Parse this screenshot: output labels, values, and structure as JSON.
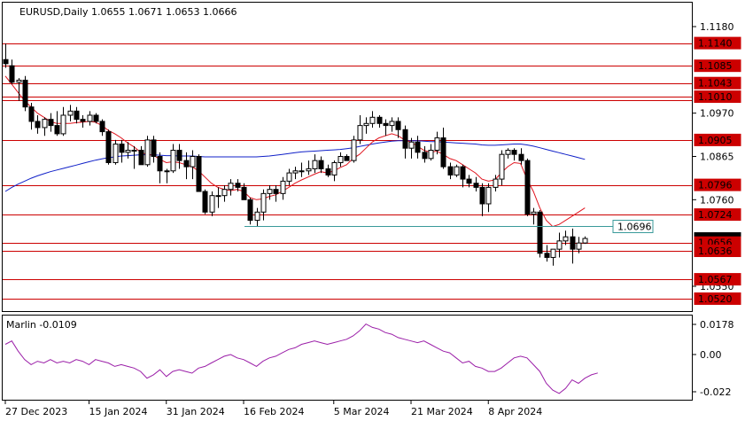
{
  "header": {
    "title": "EURUSD,Daily",
    "ohlc": "1.0655 1.0671 1.0653 1.0666"
  },
  "indicator": {
    "label": "Marlin -0.0109",
    "ticks": [
      "0.0178",
      "0.00",
      "-0.022"
    ]
  },
  "colors": {
    "bull": "#ffffff",
    "bear": "#000000",
    "level": "#cc0000",
    "ma_fast": "#e0141e",
    "ma_slow": "#1020c8",
    "marlin": "#9b1fa8",
    "hline": "#3a9a9a"
  },
  "chart_data": [
    {
      "type": "candlestick",
      "title": "EURUSD,Daily",
      "price_ticks": [
        "1.1180",
        "1.0970",
        "1.0865",
        "1.0760",
        "1.0550"
      ],
      "x_tick_labels": [
        "27 Dec 2023",
        "15 Jan 2024",
        "31 Jan 2024",
        "16 Feb 2024",
        "5 Mar 2024",
        "21 Mar 2024",
        "8 Apr 2024"
      ],
      "horizontal_levels": [
        "1.1140",
        "1.1085",
        "1.1043",
        "1.1010",
        "1.1001",
        "1.0905",
        "1.0796",
        "1.0724",
        "1.0656",
        "1.0636",
        "1.0567",
        "1.0520"
      ],
      "marked_level": "1.0696",
      "current_price": "1.0666",
      "series": [
        {
          "name": "open",
          "values": [
            1.11,
            1.1085,
            1.1045,
            1.105,
            1.0985,
            1.095,
            1.0935,
            1.0955,
            1.094,
            1.092,
            1.0965,
            1.0975,
            1.0955,
            1.095,
            1.0965,
            1.095,
            1.0925,
            1.085,
            1.0895,
            1.0875,
            1.088,
            1.088,
            1.0845,
            1.0905,
            1.0865,
            1.083,
            1.083,
            1.088,
            1.0855,
            1.084,
            1.0865,
            1.078,
            1.073,
            1.077,
            1.077,
            1.0785,
            1.08,
            1.079,
            1.076,
            1.071,
            1.073,
            1.0775,
            1.0785,
            1.0775,
            1.0805,
            1.0825,
            1.083,
            1.083,
            1.0835,
            1.0855,
            1.0835,
            1.082,
            1.085,
            1.0865,
            1.0855,
            1.0905,
            1.094,
            1.0945,
            1.096,
            1.0945,
            1.094,
            1.095,
            1.093,
            1.0885,
            1.09,
            1.0875,
            1.086,
            1.088,
            1.091,
            1.084,
            1.082,
            1.084,
            1.081,
            1.08,
            1.079,
            1.075,
            1.079,
            1.081,
            1.087,
            1.088,
            1.087,
            1.0855,
            1.0725,
            1.073,
            1.063,
            1.062,
            1.064,
            1.066,
            1.067,
            1.064,
            1.0655
          ]
        },
        {
          "name": "high",
          "values": [
            1.1139,
            1.11,
            1.1055,
            1.106,
            1.0995,
            1.0965,
            1.096,
            1.097,
            1.0975,
            1.0985,
            1.099,
            1.0985,
            1.0965,
            1.0975,
            1.097,
            1.0955,
            1.093,
            1.0905,
            1.0905,
            1.09,
            1.089,
            1.089,
            1.0915,
            1.0915,
            1.0875,
            1.0835,
            1.0895,
            1.0895,
            1.0875,
            1.088,
            1.087,
            1.0785,
            1.078,
            1.079,
            1.0795,
            1.081,
            1.081,
            1.08,
            1.0765,
            1.074,
            1.0785,
            1.0795,
            1.0795,
            1.0815,
            1.0835,
            1.084,
            1.085,
            1.0855,
            1.087,
            1.0865,
            1.0845,
            1.0855,
            1.0875,
            1.087,
            1.0915,
            1.0965,
            1.096,
            1.0975,
            1.0965,
            1.0955,
            1.096,
            1.096,
            1.094,
            1.091,
            1.0915,
            1.089,
            1.0895,
            1.0925,
            1.0935,
            1.085,
            1.0845,
            1.0845,
            1.082,
            1.0815,
            1.08,
            1.08,
            1.082,
            1.088,
            1.0885,
            1.0885,
            1.0885,
            1.086,
            1.074,
            1.0735,
            1.065,
            1.064,
            1.068,
            1.0685,
            1.069,
            1.067,
            1.0671
          ]
        },
        {
          "name": "low",
          "values": [
            1.108,
            1.104,
            1.1,
            1.0975,
            1.093,
            1.092,
            1.0915,
            1.0925,
            1.0915,
            1.0915,
            1.095,
            1.0945,
            1.0935,
            1.094,
            1.0945,
            1.0915,
            1.0845,
            1.0845,
            1.085,
            1.086,
            1.0835,
            1.0845,
            1.084,
            1.085,
            1.08,
            1.08,
            1.0825,
            1.0835,
            1.081,
            1.081,
            1.078,
            1.0725,
            1.072,
            1.074,
            1.0755,
            1.077,
            1.078,
            1.076,
            1.07,
            1.0695,
            1.071,
            1.076,
            1.0755,
            1.076,
            1.0795,
            1.081,
            1.0815,
            1.082,
            1.0825,
            1.0825,
            1.0815,
            1.0805,
            1.084,
            1.0855,
            1.085,
            1.0895,
            1.092,
            1.0935,
            1.0935,
            1.0915,
            1.0925,
            1.091,
            1.086,
            1.086,
            1.086,
            1.085,
            1.0855,
            1.087,
            1.0835,
            1.081,
            1.0815,
            1.079,
            1.079,
            1.078,
            1.072,
            1.073,
            1.078,
            1.0795,
            1.086,
            1.0855,
            1.0845,
            1.072,
            1.07,
            1.062,
            1.061,
            1.06,
            1.062,
            1.065,
            1.0605,
            1.063,
            1.0653
          ]
        },
        {
          "name": "close",
          "values": [
            1.109,
            1.1045,
            1.105,
            1.0985,
            1.095,
            1.0935,
            1.0955,
            1.094,
            1.092,
            1.0965,
            1.0975,
            1.0955,
            1.095,
            1.0965,
            1.095,
            1.0925,
            1.085,
            1.0895,
            1.0875,
            1.088,
            1.088,
            1.0845,
            1.0905,
            1.0865,
            1.083,
            1.083,
            1.088,
            1.0855,
            1.084,
            1.0865,
            1.078,
            1.073,
            1.077,
            1.077,
            1.0785,
            1.08,
            1.079,
            1.076,
            1.071,
            1.073,
            1.0775,
            1.0785,
            1.0775,
            1.0805,
            1.0825,
            1.083,
            1.083,
            1.0835,
            1.0855,
            1.0835,
            1.082,
            1.085,
            1.0865,
            1.0855,
            1.0905,
            1.094,
            1.0945,
            1.096,
            1.0945,
            1.094,
            1.095,
            1.093,
            1.0885,
            1.09,
            1.0875,
            1.086,
            1.088,
            1.091,
            1.084,
            1.082,
            1.084,
            1.081,
            1.08,
            1.079,
            1.075,
            1.079,
            1.081,
            1.087,
            1.088,
            1.087,
            1.0855,
            1.0725,
            1.073,
            1.063,
            1.062,
            1.064,
            1.066,
            1.067,
            1.064,
            1.0655,
            1.0666
          ]
        },
        {
          "name": "",
          "values": [
            1.106,
            1.104,
            1.102,
            1.1,
            1.0985,
            1.097,
            1.096,
            1.095,
            1.0945,
            1.0945,
            1.0945,
            1.0947,
            1.0948,
            1.095,
            1.0948,
            1.094,
            1.0928,
            1.092,
            1.091,
            1.0898,
            1.0888,
            1.0875,
            1.087,
            1.0868,
            1.0858,
            1.085,
            1.0852,
            1.085,
            1.0845,
            1.084,
            1.083,
            1.0815,
            1.08,
            1.079,
            1.0785,
            1.0782,
            1.0785,
            1.078,
            1.0765,
            1.076,
            1.0762,
            1.0768,
            1.0772,
            1.078,
            1.079,
            1.08,
            1.0808,
            1.0815,
            1.0822,
            1.0828,
            1.0825,
            1.083,
            1.0838,
            1.0845,
            1.086,
            1.087,
            1.0885,
            1.09,
            1.091,
            1.0915,
            1.092,
            1.0915,
            1.0905,
            1.09,
            1.089,
            1.088,
            1.0875,
            1.0878,
            1.087,
            1.086,
            1.0855,
            1.0845,
            1.0835,
            1.0825,
            1.081,
            1.0805,
            1.0808,
            1.0825,
            1.084,
            1.085,
            1.0848,
            1.081,
            1.078,
            1.074,
            1.071,
            1.0695,
            1.07,
            1.071,
            1.072,
            1.073,
            1.074
          ]
        },
        {
          "name": "",
          "values": [
            1.078,
            1.079,
            1.0798,
            1.0805,
            1.0812,
            1.0818,
            1.0823,
            1.0828,
            1.0832,
            1.0836,
            1.084,
            1.0844,
            1.0848,
            1.0852,
            1.0856,
            1.0859,
            1.0862,
            1.0864,
            1.0866,
            1.0867,
            1.0868,
            1.0869,
            1.0869,
            1.0869,
            1.0868,
            1.0867,
            1.0867,
            1.0866,
            1.0866,
            1.0866,
            1.0865,
            1.0864,
            1.0864,
            1.0864,
            1.0864,
            1.0864,
            1.0864,
            1.0864,
            1.0864,
            1.0864,
            1.0865,
            1.0866,
            1.0868,
            1.087,
            1.0872,
            1.0874,
            1.0876,
            1.0877,
            1.0878,
            1.0879,
            1.088,
            1.0881,
            1.0882,
            1.0884,
            1.0886,
            1.0889,
            1.0892,
            1.0895,
            1.0898,
            1.09,
            1.0902,
            1.0903,
            1.0903,
            1.0903,
            1.0903,
            1.0902,
            1.0901,
            1.0901,
            1.09,
            1.0899,
            1.0898,
            1.0897,
            1.0896,
            1.0895,
            1.0893,
            1.0892,
            1.0892,
            1.0893,
            1.0894,
            1.0895,
            1.0895,
            1.0893,
            1.089,
            1.0886,
            1.0882,
            1.0878,
            1.0874,
            1.087,
            1.0866,
            1.0862,
            1.0858
          ]
        }
      ]
    },
    {
      "type": "line",
      "title": "Marlin -0.0109",
      "y_ticks": [
        "0.0178",
        "0.00",
        "-0.022"
      ],
      "series": [
        {
          "name": "Marlin",
          "values": [
            0.006,
            0.008,
            0.002,
            -0.003,
            -0.006,
            -0.004,
            -0.005,
            -0.003,
            -0.005,
            -0.004,
            -0.005,
            -0.003,
            -0.004,
            -0.006,
            -0.003,
            -0.004,
            -0.005,
            -0.007,
            -0.006,
            -0.007,
            -0.008,
            -0.01,
            -0.014,
            -0.012,
            -0.009,
            -0.013,
            -0.01,
            -0.009,
            -0.01,
            -0.011,
            -0.008,
            -0.007,
            -0.005,
            -0.003,
            -0.001,
            0.0,
            -0.002,
            -0.003,
            -0.005,
            -0.007,
            -0.004,
            -0.002,
            -0.001,
            0.001,
            0.003,
            0.004,
            0.006,
            0.007,
            0.008,
            0.007,
            0.006,
            0.007,
            0.008,
            0.009,
            0.011,
            0.014,
            0.018,
            0.016,
            0.015,
            0.013,
            0.012,
            0.01,
            0.009,
            0.008,
            0.007,
            0.008,
            0.006,
            0.004,
            0.002,
            0.001,
            -0.002,
            -0.005,
            -0.004,
            -0.007,
            -0.008,
            -0.01,
            -0.01,
            -0.008,
            -0.005,
            -0.002,
            -0.001,
            -0.002,
            -0.006,
            -0.01,
            -0.017,
            -0.021,
            -0.023,
            -0.02,
            -0.015,
            -0.017,
            -0.014,
            -0.012,
            -0.0109
          ]
        }
      ]
    }
  ]
}
